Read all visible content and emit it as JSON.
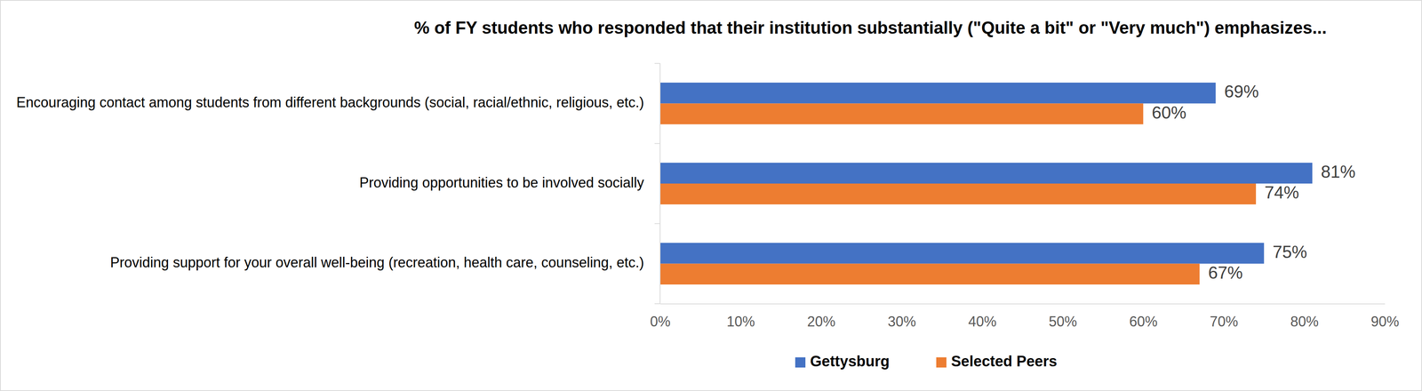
{
  "chart_data": {
    "type": "bar",
    "orientation": "horizontal",
    "title": "% of FY students who responded that their institution substantially (\"Quite a bit\" or \"Very much\") emphasizes...",
    "categories": [
      "Encouraging contact among students from different backgrounds (social, racial/ethnic, religious, etc.)",
      "Providing opportunities to be involved socially",
      "Providing support for your overall well-being (recreation, health care, counseling, etc.)"
    ],
    "series": [
      {
        "name": "Gettysburg",
        "color": "#4472c4",
        "values": [
          69,
          81,
          75
        ],
        "value_labels": [
          "69%",
          "81%",
          "75%"
        ]
      },
      {
        "name": "Selected Peers",
        "color": "#ed7d31",
        "values": [
          60,
          74,
          67
        ],
        "value_labels": [
          "60%",
          "74%",
          "67%"
        ]
      }
    ],
    "xlim": [
      0,
      90
    ],
    "xticks": [
      {
        "value": 0,
        "label": "0%"
      },
      {
        "value": 10,
        "label": "10%"
      },
      {
        "value": 20,
        "label": "20%"
      },
      {
        "value": 30,
        "label": "30%"
      },
      {
        "value": 40,
        "label": "40%"
      },
      {
        "value": 50,
        "label": "50%"
      },
      {
        "value": 60,
        "label": "60%"
      },
      {
        "value": 70,
        "label": "70%"
      },
      {
        "value": 80,
        "label": "80%"
      },
      {
        "value": 90,
        "label": "90%"
      }
    ],
    "grid": false,
    "data_labels": true,
    "legend": "bottom"
  }
}
